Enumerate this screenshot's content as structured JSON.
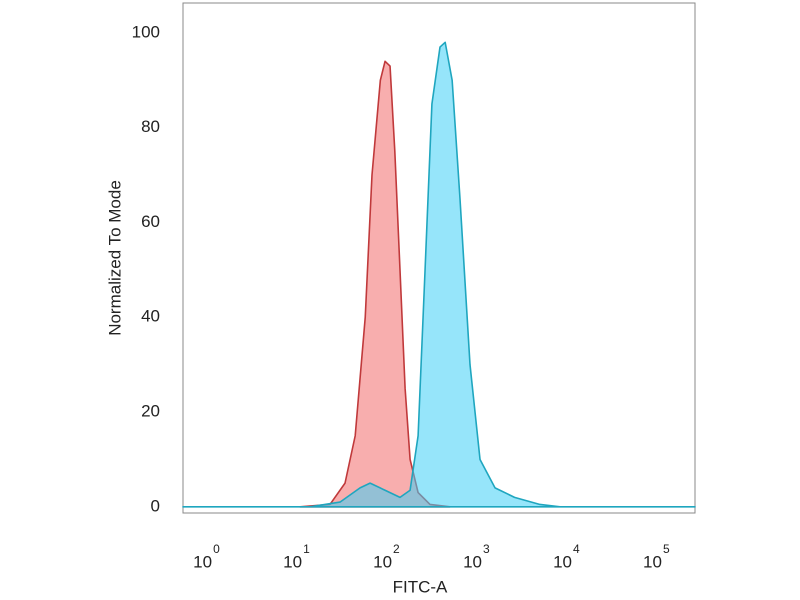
{
  "chart_data": {
    "type": "area",
    "x_label": "FITC-A",
    "y_label": "Normalized To Mode",
    "xscale": "log",
    "xlim": [
      0.5,
      245000
    ],
    "ylim": [
      -1.3,
      106.3
    ],
    "xticks": [
      {
        "value": 1,
        "label": "10",
        "exponent": "0"
      },
      {
        "value": 10,
        "label": "10",
        "exponent": "1"
      },
      {
        "value": 100,
        "label": "10",
        "exponent": "2"
      },
      {
        "value": 1000,
        "label": "10",
        "exponent": "3"
      },
      {
        "value": 10000,
        "label": "10",
        "exponent": "4"
      },
      {
        "value": 100000,
        "label": "10",
        "exponent": "5"
      }
    ],
    "yticks": [
      0,
      20,
      40,
      60,
      80,
      100
    ],
    "series": [
      {
        "color": "#f26b6b",
        "stroke": "#c0393b",
        "x": [
          10,
          21.5,
          31.6,
          41,
          53,
          63,
          78,
          88,
          100,
          113,
          129,
          147,
          167,
          205,
          278,
          464
        ],
        "values": [
          0,
          0.5,
          5,
          15,
          40,
          70,
          90,
          94,
          93,
          75,
          50,
          25,
          10,
          3,
          0.5,
          0
        ]
      },
      {
        "color": "#3fd0f5",
        "stroke": "#1fa6bf",
        "x": [
          0.5,
          12.9,
          27.8,
          46.4,
          60,
          88,
          129,
          167,
          205,
          245,
          292,
          359,
          410,
          490,
          599,
          774,
          1000,
          1468,
          2420,
          4642,
          7743,
          245000
        ],
        "values": [
          0,
          0,
          1,
          4,
          5,
          3.5,
          2,
          3.5,
          15,
          50,
          85,
          97,
          98,
          90,
          65,
          30,
          10,
          4,
          2,
          0.5,
          0,
          0
        ]
      }
    ]
  }
}
